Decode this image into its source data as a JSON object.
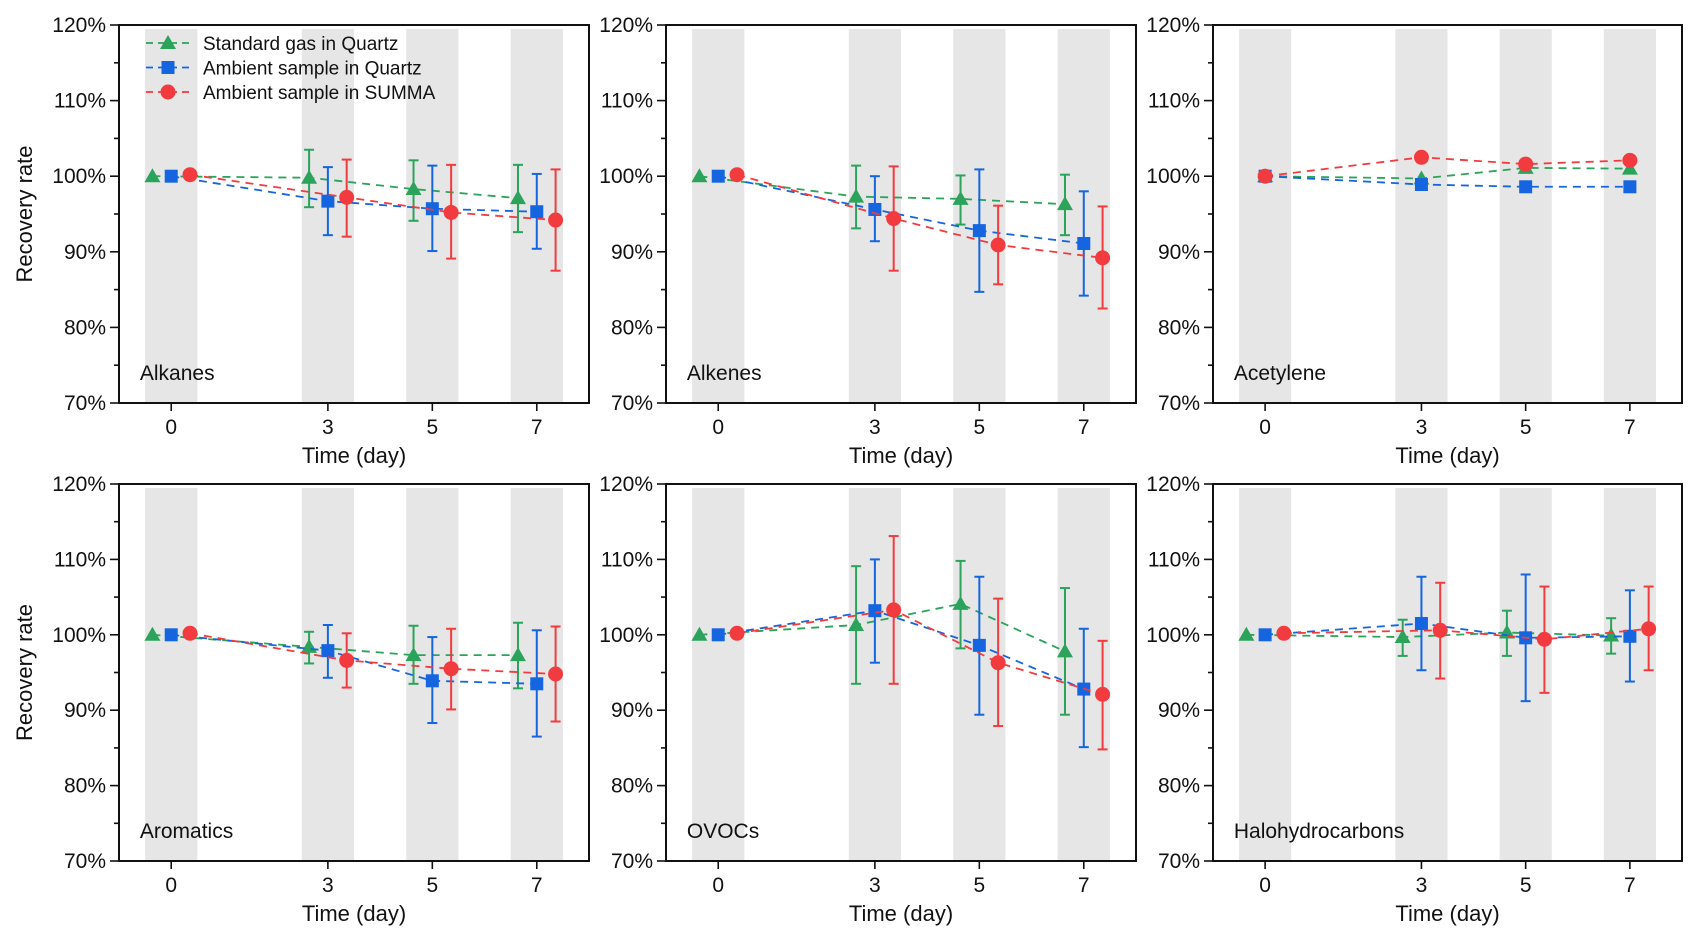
{
  "figure": {
    "ylabel": "Recovery rate",
    "xlabel": "Time (day)"
  },
  "legend": [
    {
      "name": "Standard gas in Quartz",
      "marker": "triangle",
      "color": "#2ba35a"
    },
    {
      "name": "Ambient sample in Quartz",
      "marker": "square",
      "color": "#1565e0"
    },
    {
      "name": "Ambient sample in SUMMA",
      "marker": "circle",
      "color": "#f23b3f"
    }
  ],
  "chart_data": [
    {
      "type": "line",
      "title": "Alkanes",
      "xlabel": "Time (day)",
      "ylabel": "Recovery rate",
      "x": [
        0,
        3,
        5,
        7
      ],
      "xticks": [
        "0",
        "3",
        "5",
        "7"
      ],
      "yticks": [
        "70%",
        "80%",
        "90%",
        "100%",
        "110%",
        "120%"
      ],
      "ylim": [
        70,
        120
      ],
      "xlim": [
        -1,
        8
      ],
      "highlight_bands_days": [
        0,
        3,
        5,
        7
      ],
      "grouped_offsets": true,
      "series": [
        {
          "name": "Standard gas in Quartz",
          "values": [
            100.0,
            99.8,
            98.3,
            97.1
          ],
          "err_low": [
            100.0,
            95.9,
            94.1,
            92.6
          ],
          "err_high": [
            100.0,
            103.5,
            102.1,
            101.5
          ]
        },
        {
          "name": "Ambient sample in Quartz",
          "values": [
            100.0,
            96.7,
            95.7,
            95.3
          ],
          "err_low": [
            100.0,
            92.2,
            90.1,
            90.4
          ],
          "err_high": [
            100.0,
            101.2,
            101.4,
            100.3
          ]
        },
        {
          "name": "Ambient sample in SUMMA",
          "values": [
            100.2,
            97.2,
            95.2,
            94.2
          ],
          "err_low": [
            100.2,
            92.0,
            89.1,
            87.5
          ],
          "err_high": [
            100.2,
            102.2,
            101.5,
            100.9
          ]
        }
      ]
    },
    {
      "type": "line",
      "title": "Alkenes",
      "xlabel": "Time (day)",
      "ylabel": "",
      "x": [
        0,
        3,
        5,
        7
      ],
      "xticks": [
        "0",
        "3",
        "5",
        "7"
      ],
      "yticks": [
        "70%",
        "80%",
        "90%",
        "100%",
        "110%",
        "120%"
      ],
      "ylim": [
        70,
        120
      ],
      "xlim": [
        -1,
        8
      ],
      "highlight_bands_days": [
        0,
        3,
        5,
        7
      ],
      "grouped_offsets": true,
      "series": [
        {
          "name": "Standard gas in Quartz",
          "values": [
            100.0,
            97.3,
            97.0,
            96.3
          ],
          "err_low": [
            100.0,
            93.1,
            93.6,
            92.2
          ],
          "err_high": [
            100.0,
            101.4,
            100.1,
            100.2
          ]
        },
        {
          "name": "Ambient sample in Quartz",
          "values": [
            100.0,
            95.6,
            92.8,
            91.1
          ],
          "err_low": [
            100.0,
            91.4,
            84.7,
            84.2
          ],
          "err_high": [
            100.0,
            100.0,
            100.9,
            98.0
          ]
        },
        {
          "name": "Ambient sample in SUMMA",
          "values": [
            100.2,
            94.4,
            90.9,
            89.2
          ],
          "err_low": [
            100.2,
            87.5,
            85.7,
            82.5
          ],
          "err_high": [
            100.2,
            101.3,
            96.1,
            96.0
          ]
        }
      ]
    },
    {
      "type": "line",
      "title": "Acetylene",
      "xlabel": "Time (day)",
      "ylabel": "",
      "x": [
        0,
        3,
        5,
        7
      ],
      "xticks": [
        "0",
        "3",
        "5",
        "7"
      ],
      "yticks": [
        "70%",
        "80%",
        "90%",
        "100%",
        "110%",
        "120%"
      ],
      "ylim": [
        70,
        120
      ],
      "xlim": [
        -1,
        8
      ],
      "highlight_bands_days": [
        0,
        3,
        5,
        7
      ],
      "grouped_offsets": false,
      "series": [
        {
          "name": "Standard gas in Quartz",
          "values": [
            100.0,
            99.7,
            101.1,
            101.0
          ]
        },
        {
          "name": "Ambient sample in Quartz",
          "values": [
            100.0,
            98.9,
            98.6,
            98.6
          ]
        },
        {
          "name": "Ambient sample in SUMMA",
          "values": [
            100.0,
            102.5,
            101.6,
            102.1
          ]
        }
      ]
    },
    {
      "type": "line",
      "title": "Aromatics",
      "xlabel": "Time (day)",
      "ylabel": "Recovery rate",
      "x": [
        0,
        3,
        5,
        7
      ],
      "xticks": [
        "0",
        "3",
        "5",
        "7"
      ],
      "yticks": [
        "70%",
        "80%",
        "90%",
        "100%",
        "110%",
        "120%"
      ],
      "ylim": [
        70,
        120
      ],
      "xlim": [
        -1,
        8
      ],
      "highlight_bands_days": [
        0,
        3,
        5,
        7
      ],
      "grouped_offsets": true,
      "series": [
        {
          "name": "Standard gas in Quartz",
          "values": [
            100.0,
            98.4,
            97.3,
            97.3
          ],
          "err_low": [
            100.0,
            96.2,
            93.5,
            92.9
          ],
          "err_high": [
            100.0,
            100.4,
            101.2,
            101.6
          ]
        },
        {
          "name": "Ambient sample in Quartz",
          "values": [
            100.0,
            97.9,
            93.9,
            93.5
          ],
          "err_low": [
            100.0,
            94.3,
            88.3,
            86.5
          ],
          "err_high": [
            100.0,
            101.3,
            99.7,
            100.6
          ]
        },
        {
          "name": "Ambient sample in SUMMA",
          "values": [
            100.2,
            96.6,
            95.5,
            94.8
          ],
          "err_low": [
            100.2,
            93.0,
            90.1,
            88.5
          ],
          "err_high": [
            100.2,
            100.2,
            100.8,
            101.1
          ]
        }
      ]
    },
    {
      "type": "line",
      "title": "OVOCs",
      "xlabel": "Time (day)",
      "ylabel": "",
      "x": [
        0,
        3,
        5,
        7
      ],
      "xticks": [
        "0",
        "3",
        "5",
        "7"
      ],
      "yticks": [
        "70%",
        "80%",
        "90%",
        "100%",
        "110%",
        "120%"
      ],
      "ylim": [
        70,
        120
      ],
      "xlim": [
        -1,
        8
      ],
      "highlight_bands_days": [
        0,
        3,
        5,
        7
      ],
      "grouped_offsets": true,
      "series": [
        {
          "name": "Standard gas in Quartz",
          "values": [
            100.0,
            101.3,
            104.1,
            97.8
          ],
          "err_low": [
            100.0,
            93.5,
            98.2,
            89.4
          ],
          "err_high": [
            100.0,
            109.1,
            109.8,
            106.2
          ]
        },
        {
          "name": "Ambient sample in Quartz",
          "values": [
            100.0,
            103.2,
            98.6,
            92.8
          ],
          "err_low": [
            100.0,
            96.3,
            89.4,
            85.1
          ],
          "err_high": [
            100.0,
            110.0,
            107.7,
            100.8
          ]
        },
        {
          "name": "Ambient sample in SUMMA",
          "values": [
            100.2,
            103.3,
            96.3,
            92.1
          ],
          "err_low": [
            100.2,
            93.5,
            87.9,
            84.8
          ],
          "err_high": [
            100.2,
            113.1,
            104.8,
            99.2
          ]
        }
      ]
    },
    {
      "type": "line",
      "title": "Halohydrocarbons",
      "xlabel": "Time (day)",
      "ylabel": "",
      "x": [
        0,
        3,
        5,
        7
      ],
      "xticks": [
        "0",
        "3",
        "5",
        "7"
      ],
      "yticks": [
        "70%",
        "80%",
        "90%",
        "100%",
        "110%",
        "120%"
      ],
      "ylim": [
        70,
        120
      ],
      "xlim": [
        -1,
        8
      ],
      "highlight_bands_days": [
        0,
        3,
        5,
        7
      ],
      "grouped_offsets": true,
      "series": [
        {
          "name": "Standard gas in Quartz",
          "values": [
            100.0,
            99.7,
            100.3,
            99.9
          ],
          "err_low": [
            100.0,
            97.2,
            97.2,
            97.5
          ],
          "err_high": [
            100.0,
            102.0,
            103.2,
            102.2
          ]
        },
        {
          "name": "Ambient sample in Quartz",
          "values": [
            100.0,
            101.5,
            99.6,
            99.8
          ],
          "err_low": [
            100.0,
            95.3,
            91.2,
            93.8
          ],
          "err_high": [
            100.0,
            107.7,
            108.0,
            105.9
          ]
        },
        {
          "name": "Ambient sample in SUMMA",
          "values": [
            100.2,
            100.6,
            99.4,
            100.8
          ],
          "err_low": [
            100.2,
            94.2,
            92.3,
            95.3
          ],
          "err_high": [
            100.2,
            106.9,
            106.4,
            106.4
          ]
        }
      ]
    }
  ]
}
